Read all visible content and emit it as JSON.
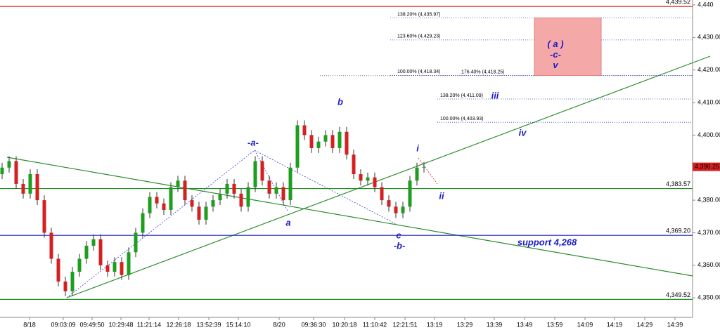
{
  "chart_data": {
    "type": "candlestick",
    "ylim": [
      4344,
      4441.5
    ],
    "yticks": [
      {
        "value": 4350,
        "label": "4,350.00"
      },
      {
        "value": 4360,
        "label": "4,360.00"
      },
      {
        "value": 4370,
        "label": "4,370.00"
      },
      {
        "value": 4380,
        "label": "4,380.00"
      },
      {
        "value": 4390,
        "label": "4,390.00"
      },
      {
        "value": 4400,
        "label": "4,400.00"
      },
      {
        "value": 4410,
        "label": "4,410.00"
      },
      {
        "value": 4420,
        "label": "4,420.00"
      },
      {
        "value": 4430,
        "label": "4,430.00"
      },
      {
        "value": 4440,
        "label": "4,440"
      }
    ],
    "x_labels": [
      "8/18",
      "09:03:09",
      "09:49:50",
      "10:29:48",
      "11:21:14",
      "12:26:18",
      "13:52:39",
      "15:14:10",
      "8/20",
      "09:36:30",
      "10:20:18",
      "11:10:42",
      "12:21:51",
      "13:19",
      "13:29",
      "13:39",
      "13:49",
      "13:59",
      "14:09",
      "14:19",
      "14:29",
      "14:39"
    ],
    "up_color": "#1e9e1e",
    "down_color": "#d42020",
    "open": [
      4388,
      4390,
      4392,
      4385,
      4382,
      4388,
      4380,
      4370,
      4362,
      4355,
      4352,
      4358,
      4362,
      4366,
      4368,
      4360,
      4358,
      4361,
      4357,
      4364,
      4370,
      4376,
      4381,
      4379,
      4377,
      4384,
      4386,
      4380,
      4378,
      4374,
      4378,
      4380,
      4382,
      4385,
      4382,
      4378,
      4384,
      4392,
      4386,
      4382,
      4384,
      4380,
      4390,
      4403,
      4400,
      4396,
      4398,
      4400,
      4396,
      4401,
      4394,
      4388,
      4386,
      4387,
      4384,
      4380,
      4378,
      4376,
      4378,
      4386,
      4390
    ],
    "high": [
      4391.5,
      4393.5,
      4393.5,
      4386.5,
      4389.5,
      4389.5,
      4381.5,
      4371.5,
      4363.5,
      4356.5,
      4359.5,
      4363.5,
      4367.5,
      4369.5,
      4369.5,
      4361.5,
      4362.5,
      4362.5,
      4365.5,
      4371.5,
      4377.5,
      4382.5,
      4382.5,
      4380.5,
      4385.5,
      4387.5,
      4387.5,
      4381.5,
      4379.5,
      4379.5,
      4381.5,
      4383.5,
      4386.5,
      4386.5,
      4383.5,
      4385.5,
      4393.5,
      4393.5,
      4387.5,
      4385.5,
      4385.5,
      4391.5,
      4404.5,
      4404.5,
      4401.5,
      4399.5,
      4401.5,
      4401.5,
      4402.5,
      4402.5,
      4395.5,
      4389.5,
      4388.5,
      4388.5,
      4385.5,
      4381.5,
      4379.5,
      4379.5,
      4387.5,
      4391.5,
      4391.75
    ],
    "low": [
      4386.5,
      4388.5,
      4383.5,
      4380.5,
      4380.5,
      4378.5,
      4368.5,
      4360.5,
      4353.5,
      4350.5,
      4350.5,
      4356.5,
      4360.5,
      4364.5,
      4358.5,
      4356.5,
      4356.5,
      4355.5,
      4355.5,
      4362.5,
      4368.5,
      4374.5,
      4377.5,
      4375.5,
      4375.5,
      4382.5,
      4378.5,
      4376.5,
      4372.5,
      4372.5,
      4376.5,
      4378.5,
      4380.5,
      4380.5,
      4376.5,
      4376.5,
      4382.5,
      4384.5,
      4380.5,
      4380.5,
      4378.5,
      4378.5,
      4388.5,
      4398.5,
      4394.5,
      4394.5,
      4396.5,
      4394.5,
      4394.5,
      4392.5,
      4386.5,
      4384.5,
      4384.5,
      4382.5,
      4378.5,
      4376.5,
      4374.5,
      4374.5,
      4376.5,
      4384.5,
      4388.5
    ],
    "close": [
      4390,
      4392,
      4385,
      4382,
      4388,
      4380,
      4370,
      4362,
      4355,
      4352,
      4358,
      4362,
      4366,
      4368,
      4360,
      4358,
      4361,
      4357,
      4364,
      4370,
      4376,
      4381,
      4379,
      4377,
      4384,
      4386,
      4380,
      4378,
      4374,
      4378,
      4380,
      4382,
      4385,
      4382,
      4378,
      4384,
      4392,
      4386,
      4382,
      4384,
      4380,
      4390,
      4403,
      4400,
      4396,
      4398,
      4400,
      4396,
      4401,
      4394,
      4388,
      4386,
      4387,
      4384,
      4380,
      4378,
      4376,
      4378,
      4386,
      4390,
      4390.25
    ],
    "levels": [
      {
        "value": 4439.52,
        "label": "4,439.52",
        "color": "#d42020"
      },
      {
        "value": 4383.57,
        "label": "4,383.57",
        "color": "#1e8c1e"
      },
      {
        "value": 4369.2,
        "label": "4,369.20",
        "color": "#1c1cc8"
      },
      {
        "value": 4349.52,
        "label": "4,349.52",
        "color": "#1e8c1e"
      }
    ],
    "last_price": {
      "value": 4390.25,
      "label": "4,390.25",
      "color": "#d42020"
    },
    "fib_levels": [
      {
        "value": 4435.97,
        "label": "138.20% (4,435.97)"
      },
      {
        "value": 4429.23,
        "label": "123.60% (4,429.23)"
      },
      {
        "value": 4418.34,
        "label": "100.00% (4,418.34)"
      },
      {
        "value": 4418.25,
        "label": "176.40% (4,418.25)"
      },
      {
        "value": 4411.09,
        "label": "138.20% (4,411.09)"
      },
      {
        "value": 4403.93,
        "label": "100.00% (4,403.93)"
      }
    ],
    "target_box": {
      "top": 4436,
      "bottom": 4418.3,
      "color": "#f5a8a8",
      "labels": [
        "( a )",
        "-c-",
        "v"
      ]
    },
    "annotations": [
      "-a-",
      "b",
      "a",
      "c",
      "-b-",
      "i",
      "ii",
      "iii",
      "iv",
      "support 4,268"
    ]
  }
}
